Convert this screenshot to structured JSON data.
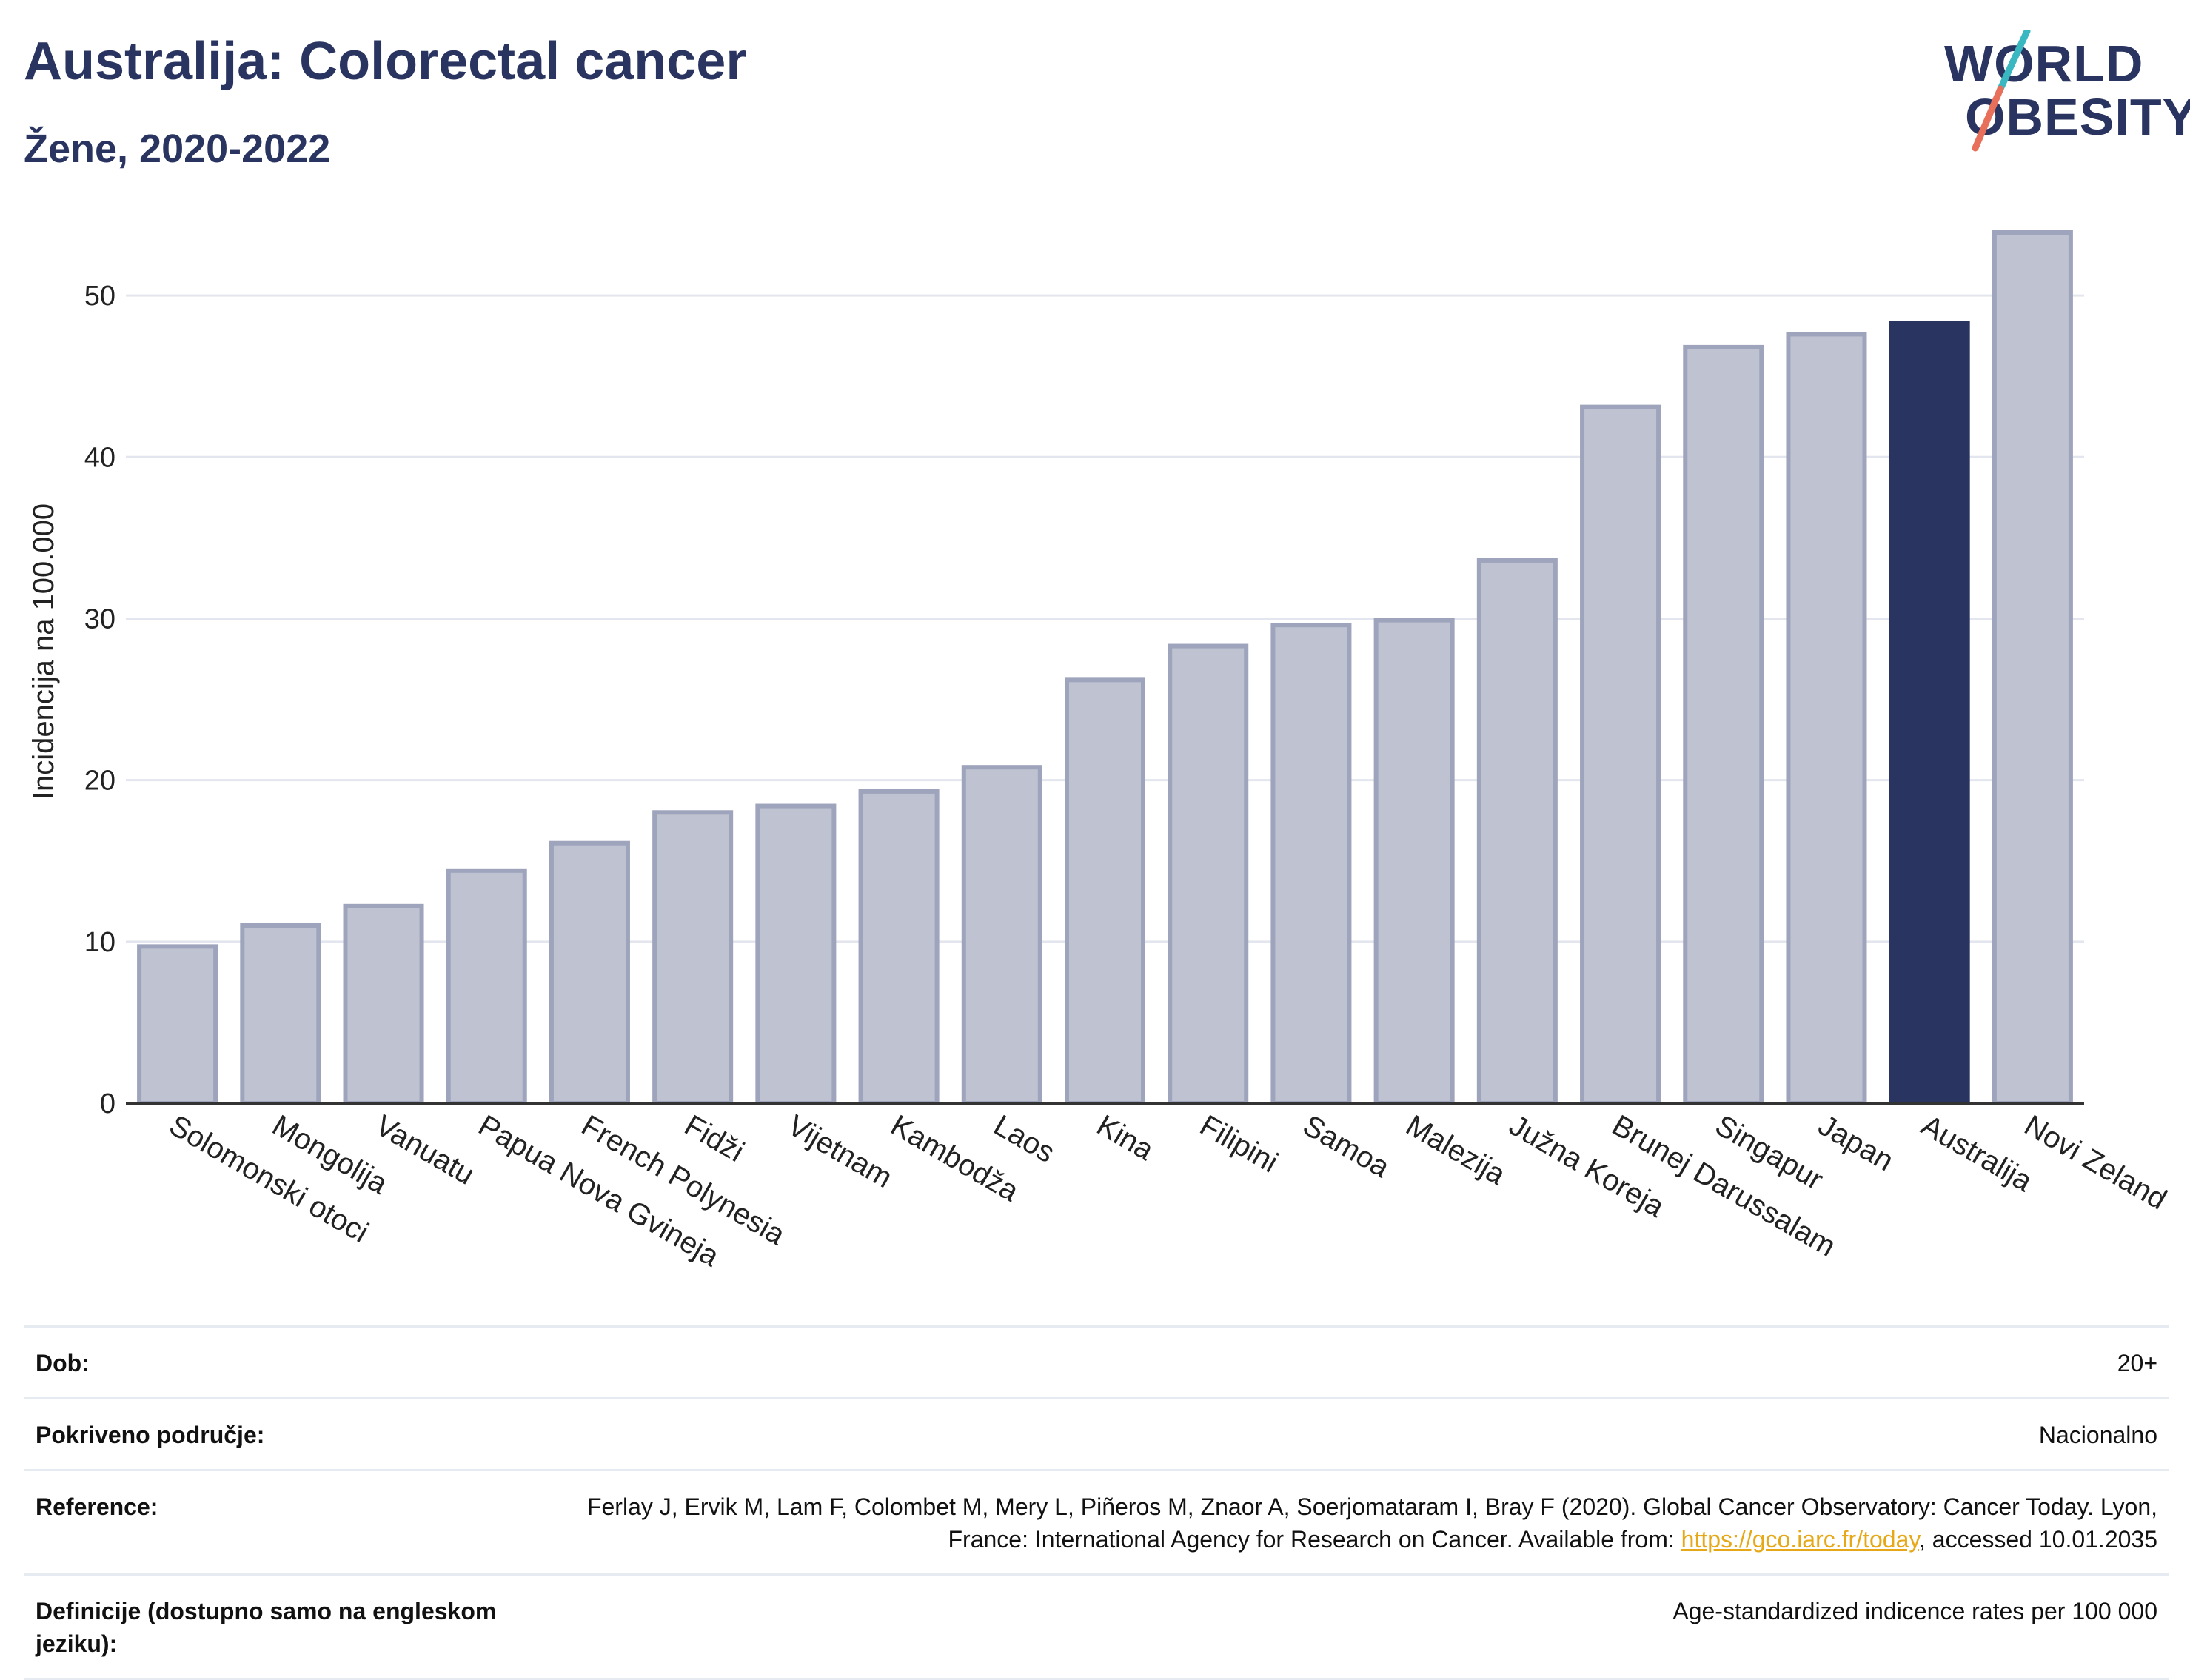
{
  "header": {
    "title": "Australija: Colorectal cancer",
    "subtitle": "Žene, 2020-2022"
  },
  "logo": {
    "line1": "WORLD",
    "line2": "OBESITY",
    "colors": {
      "text": "#2a3460",
      "slash_top": "#3ab8c2",
      "slash_bottom": "#e8705a"
    }
  },
  "chart_data": {
    "type": "bar",
    "title": "Australija: Colorectal cancer",
    "subtitle": "Žene, 2020-2022",
    "ylabel": "Incidencija na 100.000",
    "xlabel": "",
    "ylim": [
      0,
      55
    ],
    "yticks": [
      0,
      10,
      20,
      30,
      40,
      50
    ],
    "grid": true,
    "highlight": "Australija",
    "colors": {
      "bar": "#bfc3d1",
      "bar_stroke": "#9ea4bc",
      "highlight": "#2a3460"
    },
    "categories": [
      "Solomonski otoci",
      "Mongolija",
      "Vanuatu",
      "Papua Nova Gvineja",
      "French Polynesia",
      "Fidži",
      "Vijetnam",
      "Kambodža",
      "Laos",
      "Kina",
      "Filipini",
      "Samoa",
      "Malezija",
      "Južna Koreja",
      "Brunej Darussalam",
      "Singapur",
      "Japan",
      "Australija",
      "Novi Zeland"
    ],
    "values": [
      9.7,
      11.0,
      12.2,
      14.4,
      16.1,
      18.0,
      18.4,
      19.3,
      20.8,
      26.2,
      28.3,
      29.6,
      29.9,
      33.6,
      43.1,
      46.8,
      47.6,
      48.3,
      53.9
    ]
  },
  "info": {
    "rows": [
      {
        "label": "Dob:",
        "value": "20+"
      },
      {
        "label": "Pokriveno područje:",
        "value": "Nacionalno"
      },
      {
        "label": "Reference:",
        "value_pre": "Ferlay J, Ervik M, Lam F, Colombet M, Mery L, Piñeros M, Znaor A, Soerjomataram I, Bray F (2020). Global Cancer Observatory: Cancer Today. Lyon, France: International Agency for Research on Cancer. Available from: ",
        "link": "https://gco.iarc.fr/today",
        "value_post": ", accessed 10.01.2035"
      },
      {
        "label": "Definicije (dostupno samo na engleskom jeziku):",
        "value": "Age-standardized indicence rates per 100 000"
      }
    ]
  }
}
